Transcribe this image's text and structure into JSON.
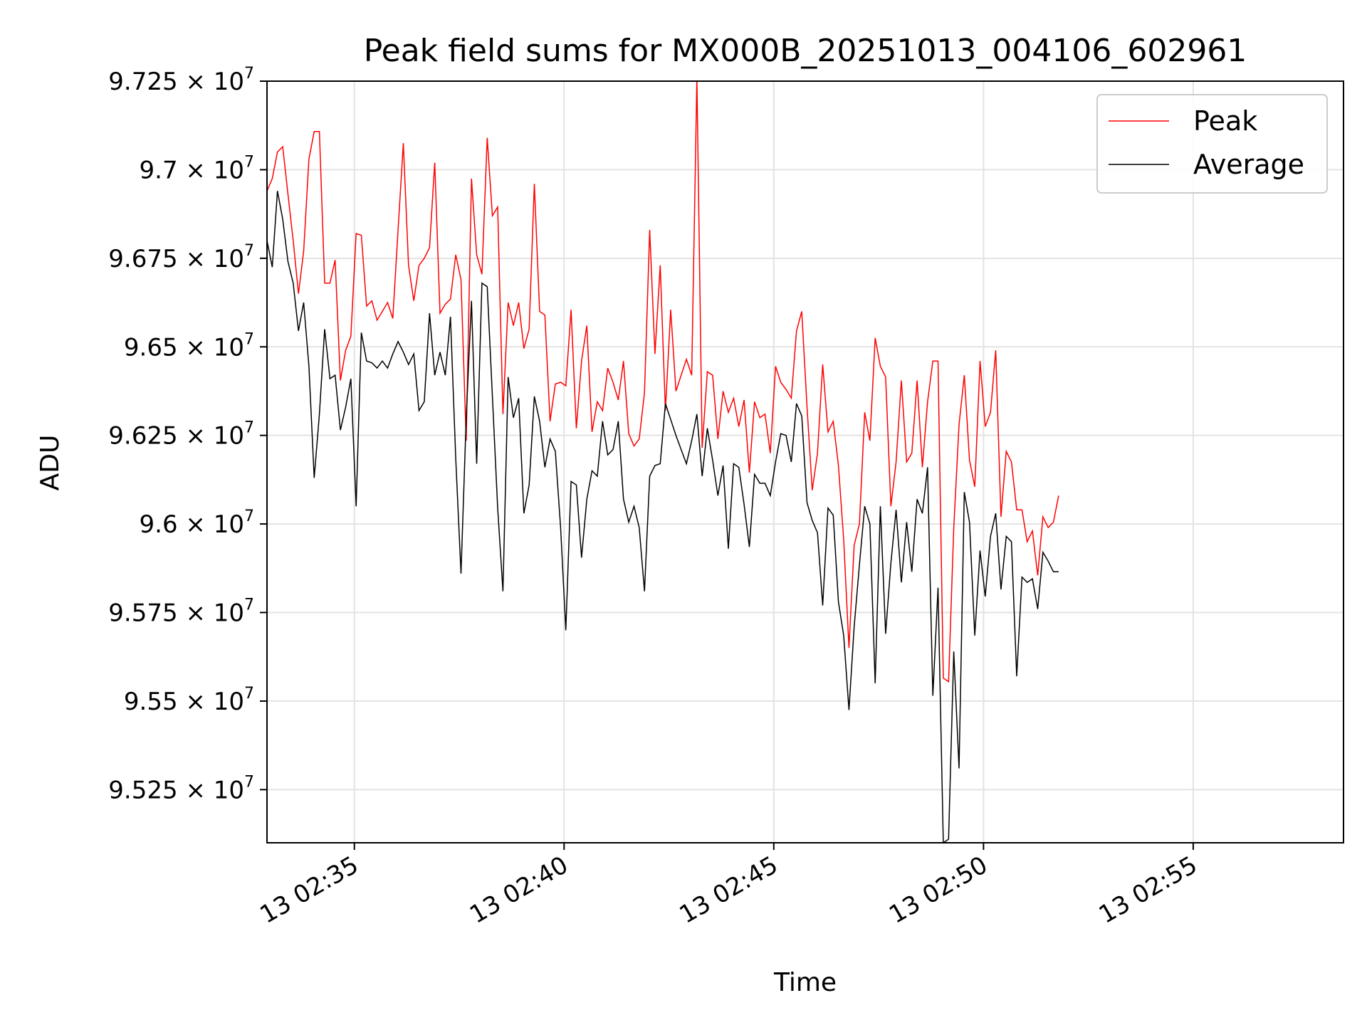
{
  "chart_data": {
    "type": "line",
    "title": "Peak field sums for MX000B_20251013_004106_602961",
    "xlabel": "Time",
    "ylabel": "ADU",
    "xlim": [
      "2025-10-13 02:32:55",
      "2025-10-13 02:58:35"
    ],
    "ylim": [
      95100000,
      97250000
    ],
    "x_ticks": [
      "13 02:35",
      "13 02:40",
      "13 02:45",
      "13 02:50",
      "13 02:55"
    ],
    "y_ticks": [
      {
        "value": 95250000,
        "mantissa": "9.525",
        "exponent": "7"
      },
      {
        "value": 95500000,
        "mantissa": "9.55",
        "exponent": "7"
      },
      {
        "value": 95750000,
        "mantissa": "9.575",
        "exponent": "7"
      },
      {
        "value": 96000000,
        "mantissa": "9.6",
        "exponent": "7"
      },
      {
        "value": 96250000,
        "mantissa": "9.625",
        "exponent": "7"
      },
      {
        "value": 96500000,
        "mantissa": "9.65",
        "exponent": "7"
      },
      {
        "value": 96750000,
        "mantissa": "9.675",
        "exponent": "7"
      },
      {
        "value": 97000000,
        "mantissa": "9.7",
        "exponent": "7"
      },
      {
        "value": 97250000,
        "mantissa": "9.725",
        "exponent": "7"
      }
    ],
    "grid": true,
    "legend_position": "top-right",
    "series": [
      {
        "name": "Peak",
        "color": "#ff0000",
        "x_start": "2025-10-13 02:32:55",
        "x_step_seconds": 7.5,
        "values": [
          96940000,
          96975000,
          97050000,
          97065000,
          96930000,
          96800000,
          96650000,
          96770000,
          97030000,
          97108000,
          97108000,
          96680000,
          96680000,
          96745000,
          96405000,
          96490000,
          96530000,
          96820000,
          96815000,
          96615000,
          96630000,
          96575000,
          96600000,
          96625000,
          96580000,
          96830000,
          97075000,
          96730000,
          96630000,
          96730000,
          96750000,
          96780000,
          97020000,
          96595000,
          96620000,
          96635000,
          96760000,
          96690000,
          96235000,
          96975000,
          96760000,
          96705000,
          97090000,
          96870000,
          96895000,
          96310000,
          96625000,
          96560000,
          96625000,
          96495000,
          96550000,
          96960000,
          96600000,
          96590000,
          96290000,
          96395000,
          96400000,
          96390000,
          96605000,
          96270000,
          96460000,
          96560000,
          96260000,
          96345000,
          96320000,
          96440000,
          96400000,
          96350000,
          96460000,
          96255000,
          96220000,
          96240000,
          96370000,
          96830000,
          96480000,
          96730000,
          96320000,
          96605000,
          96375000,
          96420000,
          96465000,
          96420000,
          97260000,
          96215000,
          96430000,
          96420000,
          96240000,
          96375000,
          96315000,
          96355000,
          96275000,
          96350000,
          96145000,
          96345000,
          96300000,
          96310000,
          96200000,
          96445000,
          96400000,
          96380000,
          96355000,
          96545000,
          96600000,
          96330000,
          96095000,
          96200000,
          96450000,
          96260000,
          96290000,
          96165000,
          95955000,
          95650000,
          95940000,
          96000000,
          96315000,
          96235000,
          96525000,
          96445000,
          96415000,
          96050000,
          96175000,
          96405000,
          96175000,
          96200000,
          96405000,
          96160000,
          96345000,
          96460000,
          96460000,
          95565000,
          95555000,
          95990000,
          96280000,
          96420000,
          96180000,
          96105000,
          96460000,
          96275000,
          96315000,
          96490000,
          96020000,
          96205000,
          96175000,
          96040000,
          96040000,
          95950000,
          95980000,
          95855000,
          96020000,
          95990000,
          96005000,
          96080000
        ]
      },
      {
        "name": "Average",
        "color": "#000000",
        "x_start": "2025-10-13 02:32:55",
        "x_step_seconds": 7.5,
        "values": [
          96800000,
          96725000,
          96940000,
          96860000,
          96740000,
          96680000,
          96545000,
          96625000,
          96445000,
          96130000,
          96310000,
          96550000,
          96410000,
          96420000,
          96265000,
          96330000,
          96410000,
          96050000,
          96540000,
          96460000,
          96455000,
          96440000,
          96460000,
          96440000,
          96480000,
          96515000,
          96485000,
          96450000,
          96480000,
          96320000,
          96345000,
          96595000,
          96420000,
          96485000,
          96420000,
          96585000,
          96185000,
          95860000,
          96300000,
          96630000,
          96170000,
          96680000,
          96670000,
          96360000,
          96045000,
          95810000,
          96415000,
          96300000,
          96355000,
          96030000,
          96110000,
          96360000,
          96290000,
          96160000,
          96240000,
          96205000,
          95990000,
          95700000,
          96120000,
          96110000,
          95905000,
          96070000,
          96150000,
          96135000,
          96290000,
          96195000,
          96210000,
          96290000,
          96070000,
          96005000,
          96050000,
          95990000,
          95810000,
          96135000,
          96165000,
          96170000,
          96340000,
          96295000,
          96250000,
          96210000,
          96170000,
          96235000,
          96310000,
          96135000,
          96270000,
          96180000,
          96080000,
          96165000,
          95930000,
          96170000,
          96160000,
          96055000,
          95935000,
          96140000,
          96115000,
          96115000,
          96080000,
          96175000,
          96255000,
          96250000,
          96175000,
          96340000,
          96305000,
          96060000,
          96010000,
          95975000,
          95770000,
          96045000,
          96025000,
          95780000,
          95685000,
          95475000,
          95710000,
          95885000,
          96050000,
          96000000,
          95550000,
          96050000,
          95690000,
          95890000,
          96040000,
          95835000,
          96005000,
          95865000,
          96070000,
          96030000,
          96160000,
          95515000,
          95820000,
          95100000,
          95110000,
          95640000,
          95310000,
          96090000,
          96005000,
          95685000,
          95925000,
          95795000,
          95965000,
          96030000,
          95815000,
          95965000,
          95950000,
          95570000,
          95850000,
          95835000,
          95845000,
          95760000,
          95920000,
          95895000,
          95865000,
          95865000
        ]
      }
    ]
  }
}
